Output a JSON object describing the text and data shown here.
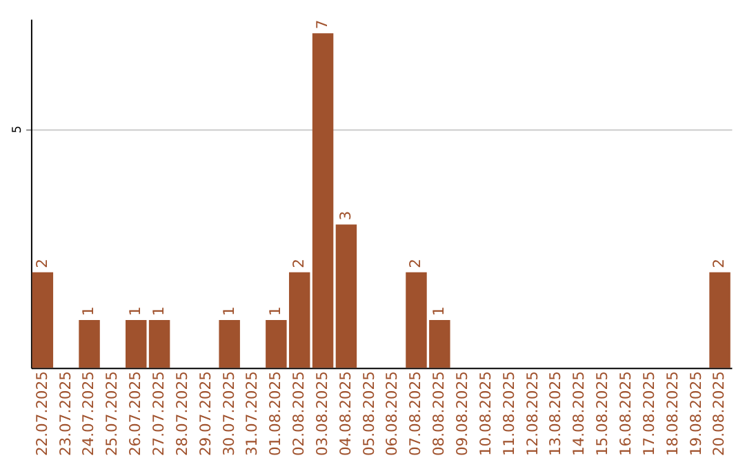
{
  "chart_data": {
    "type": "bar",
    "categories": [
      "22.07.2025",
      "23.07.2025",
      "24.07.2025",
      "25.07.2025",
      "26.07.2025",
      "27.07.2025",
      "28.07.2025",
      "29.07.2025",
      "30.07.2025",
      "31.07.2025",
      "01.08.2025",
      "02.08.2025",
      "03.08.2025",
      "04.08.2025",
      "05.08.2025",
      "06.08.2025",
      "07.08.2025",
      "08.08.2025",
      "09.08.2025",
      "10.08.2025",
      "11.08.2025",
      "12.08.2025",
      "13.08.2025",
      "14.08.2025",
      "15.08.2025",
      "16.08.2025",
      "17.08.2025",
      "18.08.2025",
      "19.08.2025",
      "20.08.2025"
    ],
    "values": [
      2,
      null,
      1,
      null,
      1,
      1,
      null,
      null,
      1,
      null,
      1,
      2,
      7,
      3,
      null,
      null,
      2,
      1,
      null,
      null,
      null,
      null,
      null,
      null,
      null,
      null,
      null,
      null,
      null,
      2
    ],
    "color": "#a0522d",
    "ylim": [
      0,
      7.3
    ],
    "yticks": [
      5
    ],
    "grid": "y",
    "data_labels": true
  }
}
